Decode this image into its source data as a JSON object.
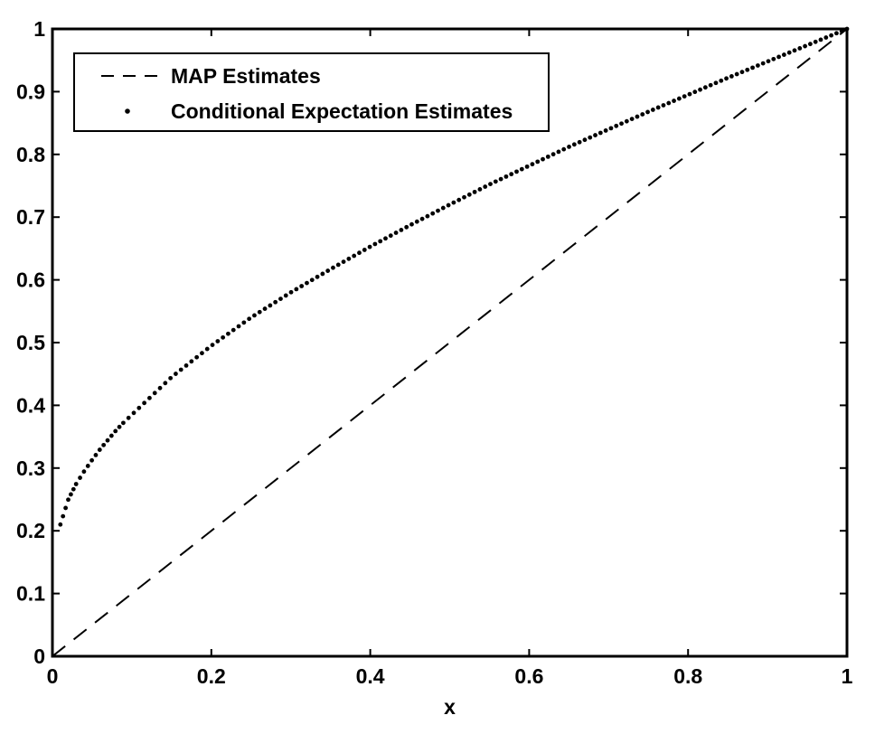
{
  "chart_data": {
    "type": "line",
    "title": "",
    "xlabel": "x",
    "ylabel": "",
    "xlim": [
      0,
      1
    ],
    "ylim": [
      0,
      1
    ],
    "grid": false,
    "legend_position": "top-left",
    "x_ticks": [
      "0",
      "0.2",
      "0.4",
      "0.6",
      "0.8",
      "1"
    ],
    "y_ticks": [
      "0",
      "0.1",
      "0.2",
      "0.3",
      "0.4",
      "0.5",
      "0.6",
      "0.7",
      "0.8",
      "0.9",
      "1"
    ],
    "series": [
      {
        "name": "MAP Estimates",
        "style": "dashed",
        "color": "#000000",
        "x": [
          0,
          1
        ],
        "y": [
          0,
          1
        ]
      },
      {
        "name": "Conditional Expectation Estimates",
        "style": "dotted",
        "color": "#000000",
        "x": [
          0.01,
          0.02,
          0.03,
          0.04,
          0.05,
          0.06,
          0.07,
          0.08,
          0.09,
          0.1,
          0.15,
          0.2,
          0.25,
          0.3,
          0.35,
          0.4,
          0.45,
          0.5,
          0.55,
          0.6,
          0.65,
          0.7,
          0.75,
          0.8,
          0.85,
          0.9,
          0.95,
          1.0
        ],
        "y": [
          0.21,
          0.25,
          0.275,
          0.295,
          0.313,
          0.33,
          0.345,
          0.36,
          0.373,
          0.385,
          0.445,
          0.495,
          0.54,
          0.58,
          0.617,
          0.653,
          0.687,
          0.72,
          0.752,
          0.782,
          0.812,
          0.84,
          0.868,
          0.895,
          0.922,
          0.948,
          0.974,
          1.0
        ]
      }
    ]
  }
}
